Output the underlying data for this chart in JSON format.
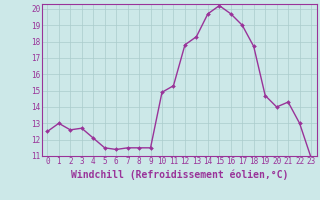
{
  "x": [
    0,
    1,
    2,
    3,
    4,
    5,
    6,
    7,
    8,
    9,
    10,
    11,
    12,
    13,
    14,
    15,
    16,
    17,
    18,
    19,
    20,
    21,
    22,
    23
  ],
  "y": [
    12.5,
    13.0,
    12.6,
    12.7,
    12.1,
    11.5,
    11.4,
    11.5,
    11.5,
    11.5,
    14.9,
    15.3,
    17.8,
    18.3,
    19.7,
    20.2,
    19.7,
    19.0,
    17.7,
    14.7,
    14.0,
    14.3,
    13.0,
    10.9
  ],
  "line_color": "#993399",
  "marker": "D",
  "marker_size": 2.0,
  "bg_color": "#cce8e8",
  "grid_color": "#aacccc",
  "xlabel": "Windchill (Refroidissement éolien,°C)",
  "ylim": [
    11,
    20
  ],
  "xlim": [
    -0.5,
    23.5
  ],
  "yticks": [
    11,
    12,
    13,
    14,
    15,
    16,
    17,
    18,
    19,
    20
  ],
  "xticks": [
    0,
    1,
    2,
    3,
    4,
    5,
    6,
    7,
    8,
    9,
    10,
    11,
    12,
    13,
    14,
    15,
    16,
    17,
    18,
    19,
    20,
    21,
    22,
    23
  ],
  "tick_label_fontsize": 5.5,
  "xlabel_fontsize": 7.0,
  "line_width": 1.0,
  "spine_color": "#993399"
}
